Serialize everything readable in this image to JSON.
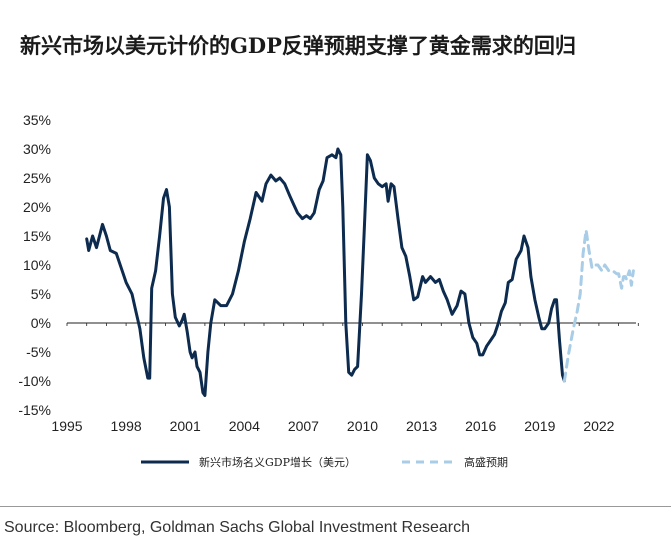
{
  "title": "新兴市场以美元计价的GDP反弹预期支撑了黄金需求的回归",
  "source": "Source: Bloomberg, Goldman Sachs Global Investment Research",
  "colors": {
    "historical": "#0d2b4e",
    "forecast": "#a9cde6",
    "axis": "#222222"
  },
  "chart_data": {
    "type": "line",
    "title": "新兴市场以美元计价的GDP反弹预期支撑了黄金需求的回归",
    "xlim": [
      1995,
      2024
    ],
    "ylim": [
      -15,
      35
    ],
    "x_ticks": [
      1995,
      1998,
      2001,
      2004,
      2007,
      2010,
      2013,
      2016,
      2019,
      2022
    ],
    "x_tick_labels": [
      "1995",
      "1998",
      "2001",
      "2004",
      "2007",
      "2010",
      "2013",
      "2016",
      "2019",
      "2022"
    ],
    "y_ticks": [
      -15,
      -10,
      -5,
      0,
      5,
      10,
      15,
      20,
      25,
      30,
      35
    ],
    "y_tick_labels": [
      "-15%",
      "-10%",
      "-5%",
      "0%",
      "5%",
      "10%",
      "15%",
      "20%",
      "25%",
      "30%",
      "35%"
    ],
    "legend_position": "bottom",
    "series": [
      {
        "name": "新兴市场名义GDP增长（美元）",
        "style": "solid",
        "points": [
          [
            1996.0,
            14.5
          ],
          [
            1996.1,
            12.5
          ],
          [
            1996.3,
            15.0
          ],
          [
            1996.5,
            13.0
          ],
          [
            1996.8,
            17.0
          ],
          [
            1997.0,
            15.0
          ],
          [
            1997.2,
            12.5
          ],
          [
            1997.5,
            12.0
          ],
          [
            1997.8,
            9.0
          ],
          [
            1998.0,
            7.0
          ],
          [
            1998.3,
            5.0
          ],
          [
            1998.5,
            2.0
          ],
          [
            1998.7,
            -1.0
          ],
          [
            1998.9,
            -6.0
          ],
          [
            1999.1,
            -9.5
          ],
          [
            1999.2,
            -9.5
          ],
          [
            1999.3,
            6.0
          ],
          [
            1999.5,
            9.0
          ],
          [
            1999.7,
            15.0
          ],
          [
            1999.9,
            21.5
          ],
          [
            2000.05,
            23.0
          ],
          [
            2000.2,
            20.0
          ],
          [
            2000.35,
            5.0
          ],
          [
            2000.5,
            1.0
          ],
          [
            2000.7,
            -0.5
          ],
          [
            2000.85,
            0.5
          ],
          [
            2000.95,
            1.5
          ],
          [
            2001.1,
            -1.5
          ],
          [
            2001.25,
            -5.0
          ],
          [
            2001.35,
            -6.0
          ],
          [
            2001.5,
            -5.0
          ],
          [
            2001.6,
            -7.5
          ],
          [
            2001.75,
            -8.5
          ],
          [
            2001.9,
            -12.0
          ],
          [
            2002.0,
            -12.5
          ],
          [
            2002.15,
            -5.0
          ],
          [
            2002.3,
            0.0
          ],
          [
            2002.5,
            4.0
          ],
          [
            2002.8,
            3.0
          ],
          [
            2003.1,
            3.0
          ],
          [
            2003.4,
            5.0
          ],
          [
            2003.7,
            9.0
          ],
          [
            2004.0,
            14.0
          ],
          [
            2004.3,
            18.0
          ],
          [
            2004.6,
            22.5
          ],
          [
            2004.9,
            21.0
          ],
          [
            2005.1,
            24.0
          ],
          [
            2005.35,
            25.5
          ],
          [
            2005.6,
            24.5
          ],
          [
            2005.8,
            25.0
          ],
          [
            2006.05,
            24.0
          ],
          [
            2006.3,
            22.0
          ],
          [
            2006.5,
            20.5
          ],
          [
            2006.7,
            19.0
          ],
          [
            2006.95,
            18.0
          ],
          [
            2007.15,
            18.5
          ],
          [
            2007.35,
            18.0
          ],
          [
            2007.55,
            19.0
          ],
          [
            2007.8,
            23.0
          ],
          [
            2008.0,
            24.5
          ],
          [
            2008.2,
            28.5
          ],
          [
            2008.45,
            29.0
          ],
          [
            2008.65,
            28.5
          ],
          [
            2008.75,
            30.0
          ],
          [
            2008.9,
            29.0
          ],
          [
            2009.0,
            20.0
          ],
          [
            2009.15,
            0.0
          ],
          [
            2009.3,
            -8.5
          ],
          [
            2009.45,
            -9.0
          ],
          [
            2009.6,
            -8.0
          ],
          [
            2009.75,
            -7.5
          ],
          [
            2009.95,
            5.0
          ],
          [
            2010.1,
            17.0
          ],
          [
            2010.25,
            29.0
          ],
          [
            2010.4,
            28.0
          ],
          [
            2010.6,
            25.0
          ],
          [
            2010.8,
            24.0
          ],
          [
            2011.0,
            23.5
          ],
          [
            2011.2,
            24.0
          ],
          [
            2011.3,
            21.0
          ],
          [
            2011.45,
            24.0
          ],
          [
            2011.6,
            23.5
          ],
          [
            2011.8,
            18.0
          ],
          [
            2012.0,
            13.0
          ],
          [
            2012.2,
            11.5
          ],
          [
            2012.4,
            8.0
          ],
          [
            2012.6,
            4.0
          ],
          [
            2012.8,
            4.5
          ],
          [
            2013.05,
            8.0
          ],
          [
            2013.2,
            7.0
          ],
          [
            2013.45,
            8.0
          ],
          [
            2013.7,
            7.0
          ],
          [
            2013.9,
            7.5
          ],
          [
            2014.1,
            5.5
          ],
          [
            2014.3,
            4.0
          ],
          [
            2014.55,
            1.5
          ],
          [
            2014.8,
            3.0
          ],
          [
            2015.0,
            5.5
          ],
          [
            2015.2,
            5.0
          ],
          [
            2015.4,
            0.0
          ],
          [
            2015.6,
            -2.5
          ],
          [
            2015.8,
            -3.5
          ],
          [
            2015.95,
            -5.5
          ],
          [
            2016.1,
            -5.5
          ],
          [
            2016.3,
            -4.0
          ],
          [
            2016.5,
            -3.0
          ],
          [
            2016.7,
            -2.0
          ],
          [
            2016.9,
            0.0
          ],
          [
            2017.05,
            2.0
          ],
          [
            2017.25,
            3.5
          ],
          [
            2017.4,
            7.0
          ],
          [
            2017.6,
            7.5
          ],
          [
            2017.8,
            11.0
          ],
          [
            2018.05,
            12.5
          ],
          [
            2018.2,
            15.0
          ],
          [
            2018.4,
            13.0
          ],
          [
            2018.55,
            8.0
          ],
          [
            2018.75,
            4.0
          ],
          [
            2018.95,
            1.0
          ],
          [
            2019.1,
            -1.0
          ],
          [
            2019.25,
            -1.0
          ],
          [
            2019.45,
            0.0
          ],
          [
            2019.6,
            2.5
          ],
          [
            2019.75,
            4.0
          ],
          [
            2019.85,
            4.0
          ],
          [
            2020.0,
            -3.0
          ],
          [
            2020.15,
            -9.0
          ],
          [
            2020.25,
            -10.0
          ]
        ]
      },
      {
        "name": "高盛预期",
        "style": "dashed",
        "points": [
          [
            2020.25,
            -10.0
          ],
          [
            2020.45,
            -5.5
          ],
          [
            2020.7,
            -1.0
          ],
          [
            2020.9,
            2.0
          ],
          [
            2021.05,
            5.0
          ],
          [
            2021.2,
            12.0
          ],
          [
            2021.35,
            16.0
          ],
          [
            2021.5,
            12.5
          ],
          [
            2021.65,
            9.5
          ],
          [
            2021.8,
            10.0
          ],
          [
            2021.95,
            10.0
          ],
          [
            2022.15,
            9.0
          ],
          [
            2022.3,
            10.0
          ],
          [
            2022.5,
            9.0
          ],
          [
            2022.7,
            9.0
          ],
          [
            2022.9,
            8.5
          ],
          [
            2023.0,
            8.5
          ],
          [
            2023.15,
            6.0
          ],
          [
            2023.25,
            8.0
          ],
          [
            2023.35,
            8.0
          ],
          [
            2023.4,
            7.5
          ],
          [
            2023.55,
            9.0
          ],
          [
            2023.65,
            6.5
          ],
          [
            2023.75,
            9.0
          ]
        ]
      }
    ]
  }
}
